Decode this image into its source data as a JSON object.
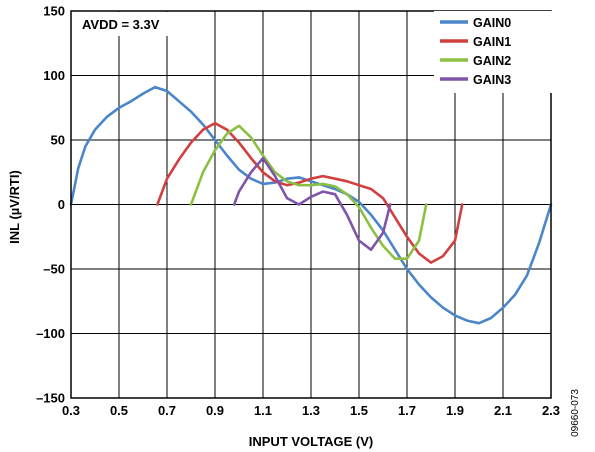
{
  "chart_data": {
    "type": "line",
    "xlabel": "INPUT VOLTAGE (V)",
    "ylabel": "INL (µV/RTI)",
    "annotation": "AVDD = 3.3V",
    "figure_id": "09660-073",
    "xlim": [
      0.3,
      2.3
    ],
    "ylim": [
      -150,
      150
    ],
    "x_ticks": [
      "0.3",
      "0.5",
      "0.7",
      "0.9",
      "1.1",
      "1.3",
      "1.5",
      "1.7",
      "1.9",
      "2.1",
      "2.3"
    ],
    "y_ticks": [
      "150",
      "100",
      "50",
      "0",
      "–50",
      "–100",
      "–150"
    ],
    "y_tick_values": [
      150,
      100,
      50,
      0,
      -50,
      -100,
      -150
    ],
    "grid": true,
    "legend_position": "top-right",
    "series": [
      {
        "name": "GAIN0",
        "color": "#4a86c8",
        "points": [
          [
            0.3,
            0
          ],
          [
            0.33,
            28
          ],
          [
            0.36,
            45
          ],
          [
            0.4,
            58
          ],
          [
            0.45,
            68
          ],
          [
            0.5,
            75
          ],
          [
            0.55,
            80
          ],
          [
            0.6,
            86
          ],
          [
            0.65,
            91
          ],
          [
            0.7,
            88
          ],
          [
            0.75,
            80
          ],
          [
            0.8,
            72
          ],
          [
            0.85,
            62
          ],
          [
            0.9,
            50
          ],
          [
            0.95,
            38
          ],
          [
            1.0,
            27
          ],
          [
            1.05,
            20
          ],
          [
            1.1,
            16
          ],
          [
            1.15,
            17
          ],
          [
            1.2,
            20
          ],
          [
            1.25,
            21
          ],
          [
            1.3,
            18
          ],
          [
            1.35,
            15
          ],
          [
            1.4,
            12
          ],
          [
            1.45,
            8
          ],
          [
            1.5,
            2
          ],
          [
            1.55,
            -8
          ],
          [
            1.6,
            -20
          ],
          [
            1.65,
            -35
          ],
          [
            1.7,
            -50
          ],
          [
            1.75,
            -62
          ],
          [
            1.8,
            -72
          ],
          [
            1.85,
            -80
          ],
          [
            1.9,
            -86
          ],
          [
            1.95,
            -90
          ],
          [
            2.0,
            -92
          ],
          [
            2.05,
            -88
          ],
          [
            2.1,
            -80
          ],
          [
            2.15,
            -70
          ],
          [
            2.2,
            -55
          ],
          [
            2.25,
            -30
          ],
          [
            2.3,
            0
          ]
        ]
      },
      {
        "name": "GAIN1",
        "color": "#d23f3f",
        "points": [
          [
            0.66,
            0
          ],
          [
            0.7,
            20
          ],
          [
            0.75,
            35
          ],
          [
            0.8,
            48
          ],
          [
            0.85,
            58
          ],
          [
            0.9,
            63
          ],
          [
            0.95,
            58
          ],
          [
            1.0,
            48
          ],
          [
            1.05,
            36
          ],
          [
            1.1,
            25
          ],
          [
            1.15,
            18
          ],
          [
            1.2,
            15
          ],
          [
            1.25,
            17
          ],
          [
            1.3,
            20
          ],
          [
            1.35,
            22
          ],
          [
            1.4,
            20
          ],
          [
            1.45,
            18
          ],
          [
            1.5,
            15
          ],
          [
            1.55,
            12
          ],
          [
            1.6,
            5
          ],
          [
            1.65,
            -10
          ],
          [
            1.7,
            -25
          ],
          [
            1.75,
            -38
          ],
          [
            1.8,
            -45
          ],
          [
            1.85,
            -40
          ],
          [
            1.9,
            -28
          ],
          [
            1.93,
            0
          ]
        ]
      },
      {
        "name": "GAIN2",
        "color": "#8cc043",
        "points": [
          [
            0.8,
            0
          ],
          [
            0.85,
            25
          ],
          [
            0.9,
            42
          ],
          [
            0.95,
            55
          ],
          [
            1.0,
            61
          ],
          [
            1.05,
            52
          ],
          [
            1.1,
            38
          ],
          [
            1.15,
            25
          ],
          [
            1.2,
            18
          ],
          [
            1.25,
            15
          ],
          [
            1.3,
            15
          ],
          [
            1.35,
            16
          ],
          [
            1.4,
            14
          ],
          [
            1.45,
            8
          ],
          [
            1.5,
            -2
          ],
          [
            1.55,
            -18
          ],
          [
            1.6,
            -32
          ],
          [
            1.65,
            -42
          ],
          [
            1.7,
            -42
          ],
          [
            1.75,
            -28
          ],
          [
            1.78,
            0
          ]
        ]
      },
      {
        "name": "GAIN3",
        "color": "#7e55a8",
        "points": [
          [
            0.98,
            0
          ],
          [
            1.0,
            10
          ],
          [
            1.05,
            25
          ],
          [
            1.1,
            36
          ],
          [
            1.15,
            22
          ],
          [
            1.2,
            5
          ],
          [
            1.25,
            0
          ],
          [
            1.3,
            6
          ],
          [
            1.35,
            10
          ],
          [
            1.4,
            8
          ],
          [
            1.45,
            -8
          ],
          [
            1.5,
            -28
          ],
          [
            1.55,
            -35
          ],
          [
            1.6,
            -22
          ],
          [
            1.63,
            0
          ]
        ]
      }
    ]
  }
}
